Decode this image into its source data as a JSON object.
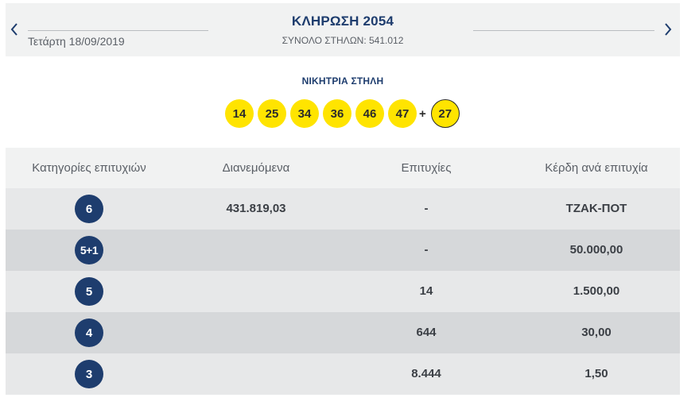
{
  "header": {
    "date": "Τετάρτη 18/09/2019",
    "title": "ΚΛΗΡΩΣΗ 2054",
    "total_columns": "ΣΥΝΟΛΟ ΣΤΗΛΩΝ: 541.012",
    "prev_icon": "chevron-left-icon",
    "next_icon": "chevron-right-icon"
  },
  "winning": {
    "label": "ΝΙΚΗΤΡΙΑ ΣΤΗΛΗ",
    "numbers": [
      "14",
      "25",
      "34",
      "36",
      "46",
      "47"
    ],
    "plus": "+",
    "bonus": "27"
  },
  "table": {
    "headers": {
      "category": "Κατηγορίες επιτυχιών",
      "distributed": "Διανεμόμενα",
      "winners": "Επιτυχίες",
      "prize": "Κέρδη ανά επιτυχία"
    },
    "rows": [
      {
        "category": "6",
        "distributed": "431.819,03",
        "winners": "-",
        "prize": "ΤΖΑΚ-ΠΟΤ"
      },
      {
        "category": "5+1",
        "distributed": "",
        "winners": "-",
        "prize": "50.000,00"
      },
      {
        "category": "5",
        "distributed": "",
        "winners": "14",
        "prize": "1.500,00"
      },
      {
        "category": "4",
        "distributed": "",
        "winners": "644",
        "prize": "30,00"
      },
      {
        "category": "3",
        "distributed": "",
        "winners": "8.444",
        "prize": "1,50"
      }
    ]
  },
  "colors": {
    "navy": "#1e3d6e",
    "ball_yellow": "#ffe400",
    "header_bg": "#f1f2f2",
    "row_light": "#e7e8e9",
    "row_dark": "#d6d8da"
  }
}
